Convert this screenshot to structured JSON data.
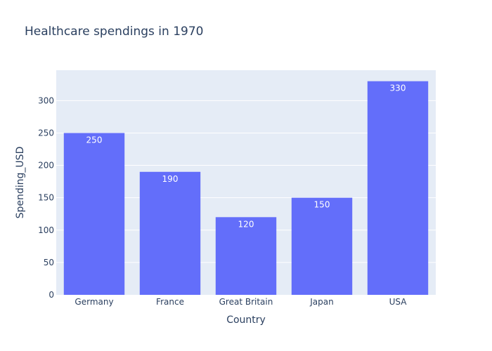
{
  "chart_data": {
    "type": "bar",
    "title": "Healthcare spendings in 1970",
    "xlabel": "Country",
    "ylabel": "Spending_USD",
    "categories": [
      "Germany",
      "France",
      "Great Britain",
      "Japan",
      "USA"
    ],
    "values": [
      250,
      190,
      120,
      150,
      330
    ],
    "value_labels": [
      "250",
      "190",
      "120",
      "150",
      "330"
    ],
    "ylim": [
      0,
      347
    ],
    "yticks": [
      0,
      50,
      100,
      150,
      200,
      250,
      300
    ],
    "grid": true,
    "legend": "none",
    "colors": {
      "bar": "#636efa",
      "plot_background": "#e5ecf6",
      "gridline": "#ffffff",
      "text": "#2a3f5f"
    }
  }
}
